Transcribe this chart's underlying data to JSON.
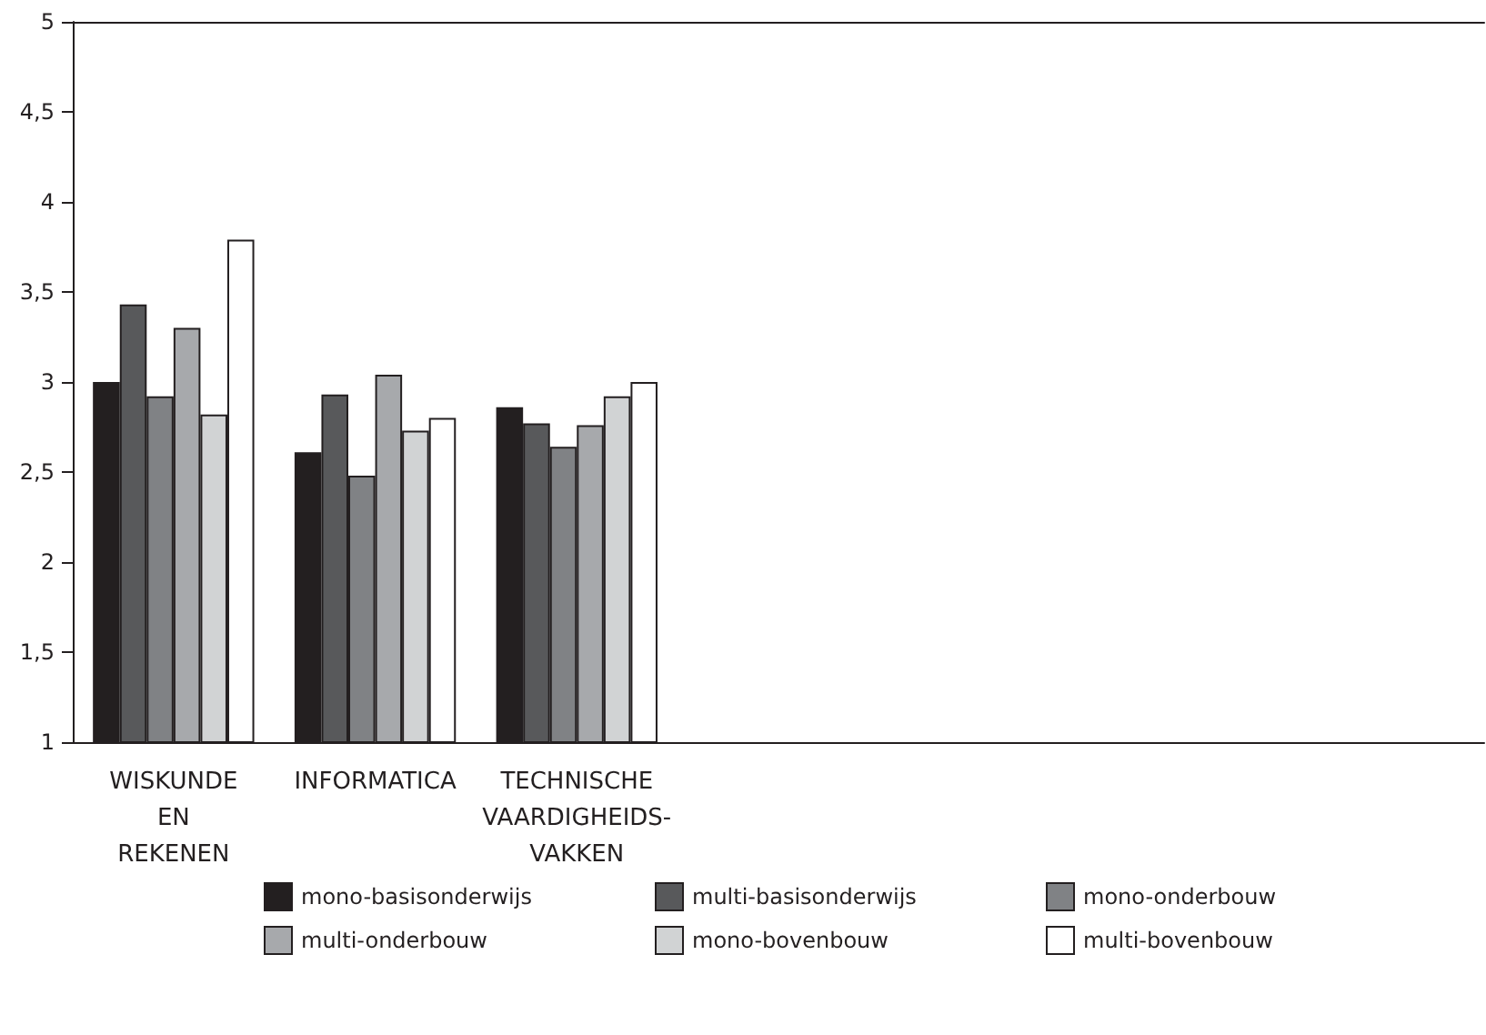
{
  "chart_data": {
    "type": "bar",
    "categories": [
      "WISKUNDE\nEN\nREKENEN",
      "INFORMATICA",
      "TECHNISCHE\nVAARDIGHEIDS-\nVAKKEN",
      null,
      null,
      null,
      null
    ],
    "series": [
      {
        "name": "mono-basisonderwijs",
        "color": "#231f20",
        "values": [
          3.0,
          2.61,
          2.86,
          null,
          null,
          null,
          null
        ]
      },
      {
        "name": "multi-basisonderwijs",
        "color": "#58595b",
        "values": [
          3.43,
          2.93,
          2.77,
          null,
          null,
          null,
          null
        ]
      },
      {
        "name": "mono-onderbouw",
        "color": "#808285",
        "values": [
          2.92,
          2.48,
          2.64,
          null,
          null,
          null,
          null
        ]
      },
      {
        "name": "multi-onderbouw",
        "color": "#a7a9ac",
        "values": [
          3.3,
          3.04,
          2.76,
          null,
          null,
          null,
          null
        ]
      },
      {
        "name": "mono-bovenbouw",
        "color": "#d1d3d4",
        "values": [
          2.82,
          2.73,
          2.92,
          null,
          null,
          null,
          null
        ]
      },
      {
        "name": "multi-bovenbouw",
        "color": "#ffffff",
        "values": [
          3.79,
          2.8,
          3.0,
          null,
          null,
          null,
          null
        ]
      }
    ],
    "ylim": [
      1,
      5
    ],
    "yticks": [
      1,
      {
        "value": 1.5,
        "label": "1,5"
      },
      2,
      {
        "value": 2.5,
        "label": "2,5"
      },
      3,
      {
        "value": 3.5,
        "label": "3,5"
      },
      4,
      {
        "value": 4.5,
        "label": "4,5"
      },
      5
    ],
    "grid": false,
    "legend": "bottom"
  }
}
